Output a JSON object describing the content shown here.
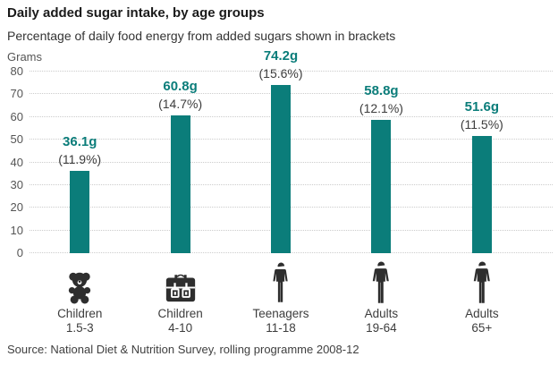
{
  "chart_data": {
    "type": "bar",
    "title": "Daily added sugar intake, by age groups",
    "subtitle": "Percentage of daily food energy from added sugars shown in brackets",
    "unit_label": "Grams",
    "ylabel": "Grams",
    "ylim": [
      0,
      80
    ],
    "yticks": [
      0,
      10,
      20,
      30,
      40,
      50,
      60,
      70,
      80
    ],
    "grid": "horizontal-dotted",
    "legend": "none",
    "bar_color": "#0b7d7a",
    "categories": [
      "Children 1.5-3",
      "Children 4-10",
      "Teenagers 11-18",
      "Adults 19-64",
      "Adults 65+"
    ],
    "category_lines": [
      {
        "name": "Children",
        "range": "1.5-3",
        "icon": "teddy-bear-icon"
      },
      {
        "name": "Children",
        "range": "4-10",
        "icon": "school-bag-icon"
      },
      {
        "name": "Teenagers",
        "range": "11-18",
        "icon": "person-icon"
      },
      {
        "name": "Adults",
        "range": "19-64",
        "icon": "person-icon"
      },
      {
        "name": "Adults",
        "range": "65+",
        "icon": "person-icon"
      }
    ],
    "values": [
      36.1,
      60.8,
      74.2,
      58.8,
      51.6
    ],
    "value_labels": [
      "36.1g",
      "60.8g",
      "74.2g",
      "58.8g",
      "51.6g"
    ],
    "pct_labels": [
      "(11.9%)",
      "(14.7%)",
      "(15.6%)",
      "(12.1%)",
      "(11.5%)"
    ],
    "source": "Source: National Diet & Nutrition Survey, rolling programme 2008-12"
  }
}
